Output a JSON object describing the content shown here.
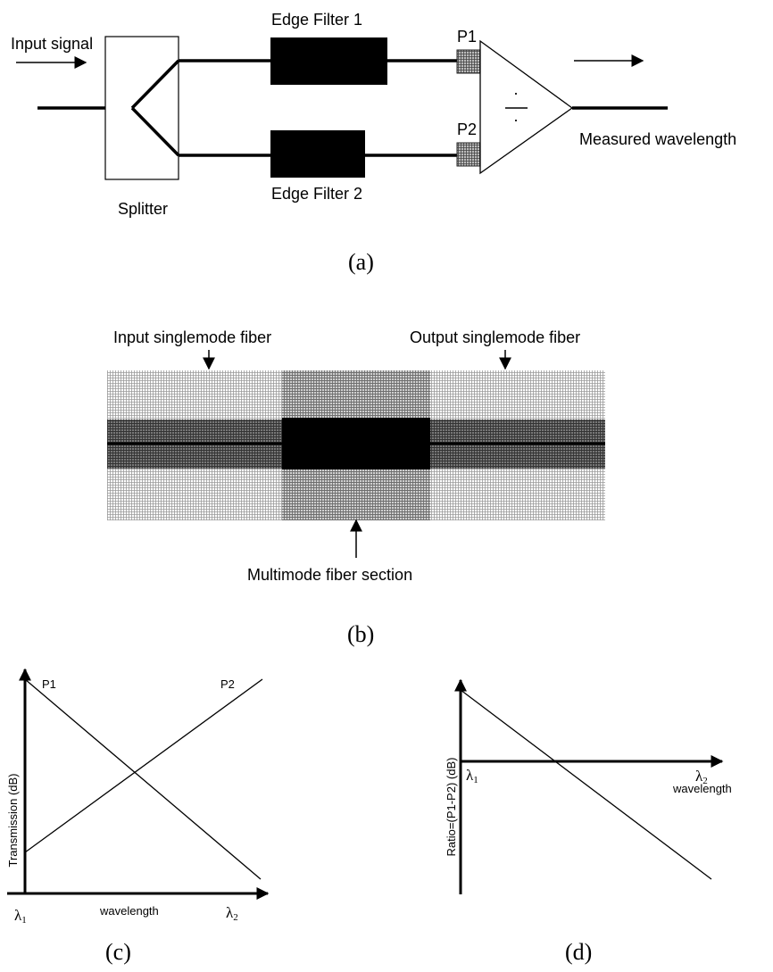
{
  "panel_a": {
    "input_label": "Input signal",
    "splitter_label": "Splitter",
    "filter1_label": "Edge Filter 1",
    "filter2_label": "Edge Filter 2",
    "p1_label": "P1",
    "p2_label": "P2",
    "output_label": "Measured wavelength",
    "caption": "(a)"
  },
  "panel_b": {
    "input_fiber_label": "Input singlemode fiber",
    "output_fiber_label": "Output singlemode fiber",
    "mmf_label": "Multimode fiber section",
    "caption": "(b)"
  },
  "panel_c": {
    "ylabel": "Transmission (dB)",
    "xlabel": "wavelength",
    "x_min_symbol": "λ",
    "x_min_sub": "1",
    "x_max_symbol": "λ",
    "x_max_sub": "2",
    "p1_label": "P1",
    "p2_label": "P2",
    "caption": "(c)"
  },
  "panel_d": {
    "ylabel": "Ratio=(P1-P2) (dB)",
    "xlabel": "wavelength",
    "x_min_symbol": "λ",
    "x_min_sub": "1",
    "x_max_symbol": "λ",
    "x_max_sub": "2",
    "caption": "(d)"
  }
}
